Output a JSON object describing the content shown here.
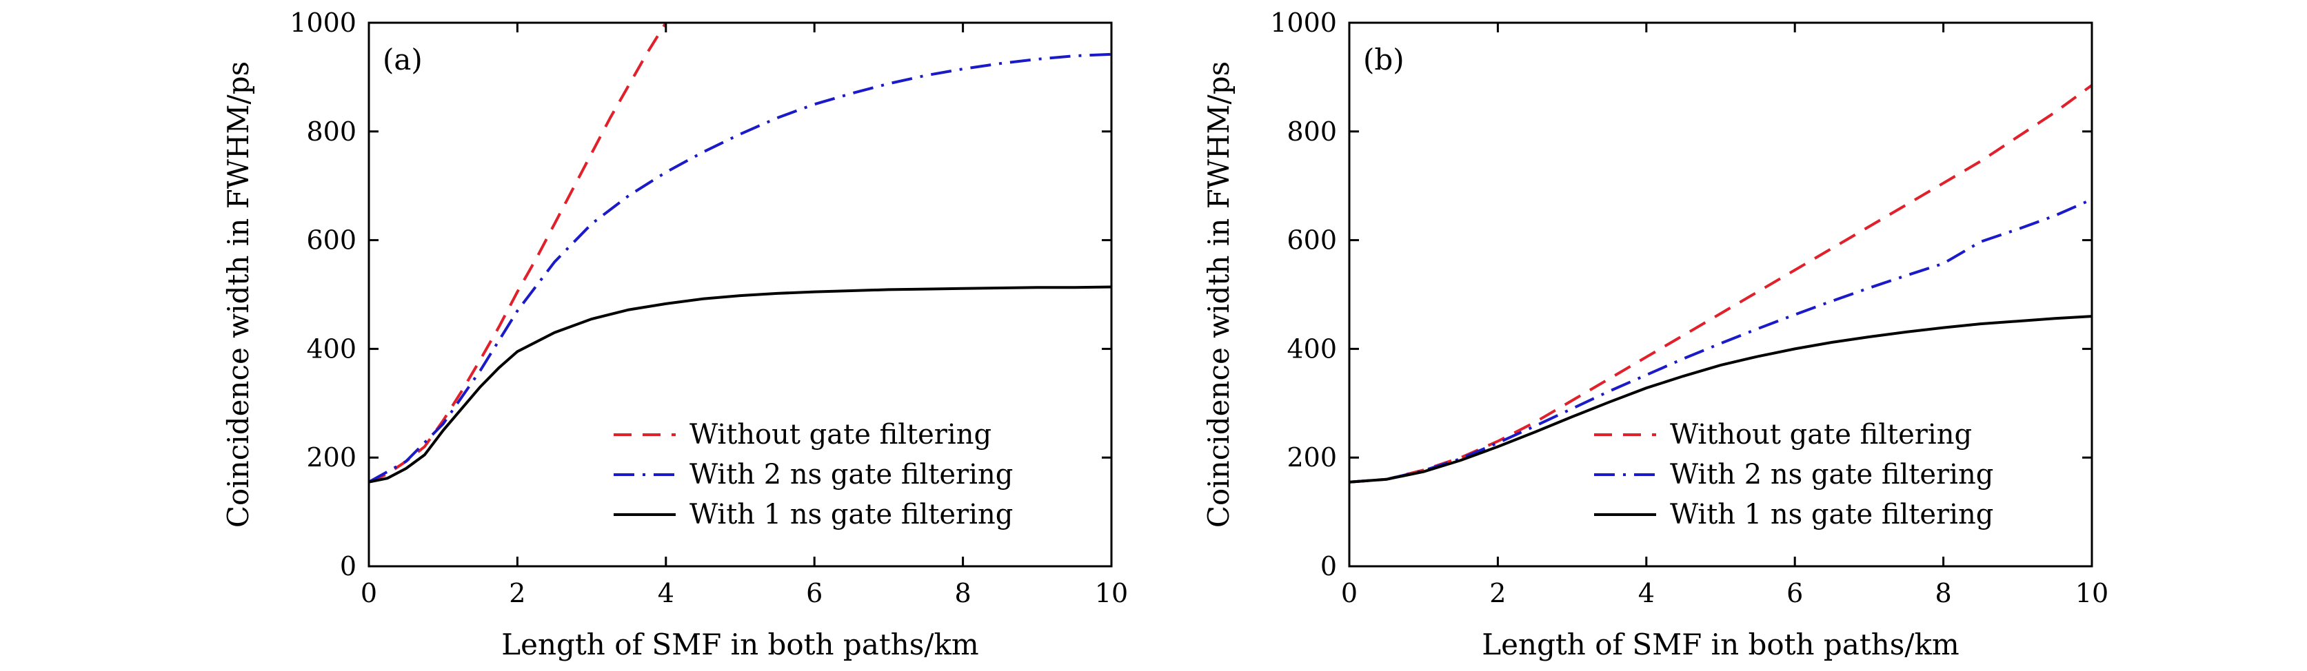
{
  "chart_data": [
    {
      "type": "line",
      "panel_label": "(a)",
      "xlabel": "Length of SMF in both paths/km",
      "ylabel": "Coincidence width in FWHM/ps",
      "xlim": [
        0,
        10
      ],
      "ylim": [
        0,
        1000
      ],
      "xticks": [
        "0",
        "2",
        "4",
        "6",
        "8",
        "10"
      ],
      "yticks": [
        "0",
        "200",
        "400",
        "600",
        "800",
        "1000"
      ],
      "grid": false,
      "legend_position": "lower-right",
      "series": [
        {
          "name": "Without gate filtering",
          "color": "#e0202a",
          "style": "dashed",
          "x": [
            0,
            0.25,
            0.5,
            0.75,
            1,
            1.25,
            1.5,
            1.75,
            2,
            2.25,
            2.5,
            2.75,
            3,
            3.25,
            3.5,
            3.75,
            4
          ],
          "y": [
            155,
            170,
            193,
            220,
            268,
            322,
            380,
            440,
            505,
            565,
            630,
            695,
            760,
            825,
            885,
            945,
            1000
          ]
        },
        {
          "name": "With 2 ns gate filtering",
          "color": "#1a1ac8",
          "style": "dashdot",
          "x": [
            0,
            0.5,
            1,
            1.5,
            2,
            2.5,
            3,
            3.5,
            4,
            4.5,
            5,
            5.5,
            6,
            6.5,
            7,
            7.5,
            8,
            8.5,
            9,
            9.5,
            10
          ],
          "y": [
            155,
            193,
            262,
            360,
            470,
            560,
            630,
            682,
            725,
            762,
            795,
            825,
            850,
            870,
            888,
            903,
            915,
            925,
            933,
            939,
            942
          ]
        },
        {
          "name": "With 1 ns gate filtering",
          "color": "#000000",
          "style": "solid",
          "x": [
            0,
            0.25,
            0.5,
            0.75,
            1,
            1.25,
            1.5,
            1.75,
            2,
            2.5,
            3,
            3.5,
            4,
            4.5,
            5,
            5.5,
            6,
            6.5,
            7,
            7.5,
            8,
            8.5,
            9,
            9.5,
            10
          ],
          "y": [
            155,
            162,
            180,
            205,
            250,
            290,
            330,
            365,
            395,
            430,
            455,
            472,
            483,
            492,
            498,
            502,
            505,
            507,
            509,
            510,
            511,
            512,
            513,
            513,
            514
          ]
        }
      ]
    },
    {
      "type": "line",
      "panel_label": "(b)",
      "xlabel": "Length of SMF in both paths/km",
      "ylabel": "Coincidence width in FWHM/ps",
      "xlim": [
        0,
        10
      ],
      "ylim": [
        0,
        1000
      ],
      "xticks": [
        "0",
        "2",
        "4",
        "6",
        "8",
        "10"
      ],
      "yticks": [
        "0",
        "200",
        "400",
        "600",
        "800",
        "1000"
      ],
      "grid": false,
      "legend_position": "lower-right",
      "series": [
        {
          "name": "Without gate filtering",
          "color": "#e0202a",
          "style": "dashed",
          "x": [
            0,
            0.5,
            1,
            1.5,
            2,
            2.5,
            3,
            3.5,
            4,
            4.5,
            5,
            5.5,
            6,
            6.5,
            7,
            7.5,
            8,
            8.5,
            9,
            9.5,
            10
          ],
          "y": [
            155,
            160,
            177,
            200,
            230,
            265,
            305,
            345,
            385,
            425,
            465,
            505,
            545,
            585,
            625,
            665,
            705,
            745,
            790,
            835,
            885
          ]
        },
        {
          "name": "With 2 ns gate filtering",
          "color": "#1a1ac8",
          "style": "dashdot",
          "x": [
            0,
            0.5,
            1,
            1.5,
            2,
            2.5,
            3,
            3.5,
            4,
            4.5,
            5,
            5.5,
            6,
            6.5,
            7,
            7.5,
            8,
            8.5,
            9,
            9.5,
            10
          ],
          "y": [
            155,
            160,
            176,
            198,
            227,
            258,
            290,
            322,
            352,
            382,
            410,
            437,
            463,
            488,
            512,
            535,
            557,
            597,
            620,
            645,
            675
          ]
        },
        {
          "name": "With 1 ns gate filtering",
          "color": "#000000",
          "style": "solid",
          "x": [
            0,
            0.5,
            1,
            1.5,
            2,
            2.5,
            3,
            3.5,
            4,
            4.5,
            5,
            5.5,
            6,
            6.5,
            7,
            7.5,
            8,
            8.5,
            9,
            9.5,
            10
          ],
          "y": [
            155,
            160,
            174,
            195,
            220,
            247,
            275,
            302,
            328,
            350,
            370,
            386,
            400,
            412,
            422,
            431,
            439,
            446,
            451,
            456,
            460
          ]
        }
      ]
    }
  ]
}
